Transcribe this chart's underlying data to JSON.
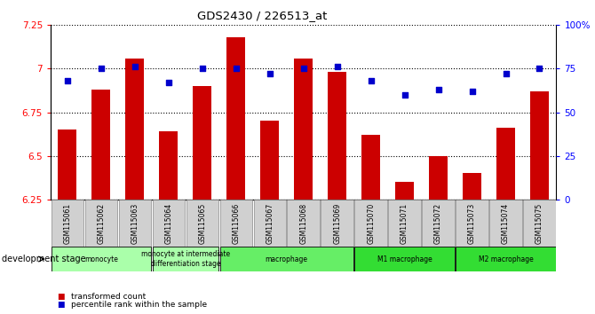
{
  "title": "GDS2430 / 226513_at",
  "samples": [
    "GSM115061",
    "GSM115062",
    "GSM115063",
    "GSM115064",
    "GSM115065",
    "GSM115066",
    "GSM115067",
    "GSM115068",
    "GSM115069",
    "GSM115070",
    "GSM115071",
    "GSM115072",
    "GSM115073",
    "GSM115074",
    "GSM115075"
  ],
  "transformed_count": [
    6.65,
    6.88,
    7.06,
    6.64,
    6.9,
    7.18,
    6.7,
    7.06,
    6.98,
    6.62,
    6.35,
    6.5,
    6.4,
    6.66,
    6.87
  ],
  "percentile_rank": [
    68,
    75,
    76,
    67,
    75,
    75,
    72,
    75,
    76,
    68,
    60,
    63,
    62,
    72,
    75
  ],
  "ylim_left": [
    6.25,
    7.25
  ],
  "ylim_right": [
    0,
    100
  ],
  "yticks_left": [
    6.25,
    6.5,
    6.75,
    7.0,
    7.25
  ],
  "ytick_labels_left": [
    "6.25",
    "6.5",
    "6.75",
    "7",
    "7.25"
  ],
  "yticks_right": [
    0,
    25,
    50,
    75,
    100
  ],
  "ytick_labels_right": [
    "0",
    "25",
    "50",
    "75",
    "100%"
  ],
  "bar_color": "#cc0000",
  "dot_color": "#0000cc",
  "group_data": [
    {
      "label": "monocyte",
      "start": 0,
      "end": 2,
      "color": "#aaffaa"
    },
    {
      "label": "monocyte at intermediate\ndifferentiation stage",
      "start": 3,
      "end": 4,
      "color": "#aaffaa"
    },
    {
      "label": "macrophage",
      "start": 5,
      "end": 8,
      "color": "#66ee66"
    },
    {
      "label": "M1 macrophage",
      "start": 9,
      "end": 11,
      "color": "#33dd33"
    },
    {
      "label": "M2 macrophage",
      "start": 12,
      "end": 14,
      "color": "#33dd33"
    }
  ],
  "development_stage_label": "development stage",
  "legend_items": [
    {
      "label": "transformed count",
      "color": "#cc0000"
    },
    {
      "label": "percentile rank within the sample",
      "color": "#0000cc"
    }
  ]
}
